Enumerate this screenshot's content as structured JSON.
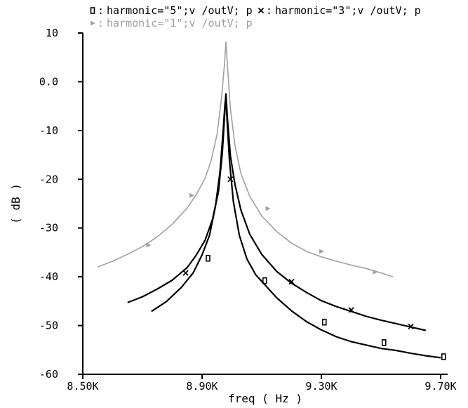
{
  "chart_data": {
    "type": "line",
    "xlabel": "freq ( Hz )",
    "ylabel": "( dB )",
    "xlim": [
      8500,
      9700
    ],
    "ylim": [
      -60,
      10
    ],
    "x_ticks": [
      {
        "value": 8500,
        "label": "8.50K"
      },
      {
        "value": 8900,
        "label": "8.90K"
      },
      {
        "value": 9300,
        "label": "9.30K"
      },
      {
        "value": 9700,
        "label": "9.70K"
      }
    ],
    "y_ticks": [
      {
        "value": 10,
        "label": "10"
      },
      {
        "value": 0,
        "label": "0.0"
      },
      {
        "value": -10,
        "label": "-10"
      },
      {
        "value": -20,
        "label": "-20"
      },
      {
        "value": -30,
        "label": "-30"
      },
      {
        "value": -40,
        "label": "-40"
      },
      {
        "value": -50,
        "label": "-50"
      },
      {
        "value": -60,
        "label": "-60"
      }
    ],
    "legend": [
      {
        "text": "harmonic=\"5\";v /outV; p",
        "color": "#000000",
        "marker": "square"
      },
      {
        "text": "harmonic=\"3\";v /outV; p",
        "color": "#000000",
        "marker": "x"
      },
      {
        "text": "harmonic=\"1\";v /outV; p",
        "color": "#a0a0a0",
        "marker": "triangle"
      }
    ],
    "series": [
      {
        "name": "harmonic=\"1\";v /outV; p",
        "color": "#a0a0a0",
        "marker": "triangle",
        "x": [
          8550,
          8600,
          8650,
          8700,
          8750,
          8800,
          8850,
          8880,
          8910,
          8930,
          8950,
          8965,
          8975,
          8980,
          8985,
          8995,
          9010,
          9030,
          9060,
          9100,
          9150,
          9200,
          9250,
          9300,
          9350,
          9400,
          9450,
          9500,
          9540
        ],
        "y": [
          -38,
          -36.8,
          -35.4,
          -33.8,
          -31.8,
          -29.2,
          -25.9,
          -23.2,
          -19.8,
          -16.2,
          -10.8,
          -3.5,
          3.5,
          8.2,
          3.5,
          -5.5,
          -13,
          -18.8,
          -23.5,
          -27.5,
          -30.7,
          -33.1,
          -34.8,
          -35.9,
          -36.8,
          -37.6,
          -38.3,
          -39.2,
          -40
        ]
      },
      {
        "name": "harmonic=\"3\";v /outV; p",
        "color": "#000000",
        "marker": "x",
        "x": [
          8650,
          8700,
          8750,
          8800,
          8850,
          8880,
          8910,
          8935,
          8955,
          8968,
          8976,
          8980,
          8985,
          8995,
          9010,
          9030,
          9060,
          9100,
          9150,
          9200,
          9250,
          9300,
          9350,
          9400,
          9450,
          9500,
          9550,
          9600,
          9650
        ],
        "y": [
          -45.3,
          -44.1,
          -42.5,
          -40.7,
          -38.1,
          -35.6,
          -32.5,
          -28.2,
          -22.5,
          -14.5,
          -6.5,
          -2.5,
          -7.5,
          -15.2,
          -21,
          -26.3,
          -31.3,
          -35.4,
          -38.9,
          -41.3,
          -43.2,
          -44.9,
          -46.1,
          -47.1,
          -48.1,
          -48.9,
          -49.6,
          -50.3,
          -51
        ]
      },
      {
        "name": "harmonic=\"5\";v /outV; p",
        "color": "#000000",
        "marker": "square",
        "x": [
          8730,
          8780,
          8830,
          8870,
          8900,
          8925,
          8945,
          8960,
          8970,
          8977,
          8980,
          8984,
          8992,
          9005,
          9025,
          9050,
          9080,
          9110,
          9150,
          9200,
          9250,
          9300,
          9350,
          9400,
          9450,
          9500,
          9550,
          9600,
          9650,
          9700
        ],
        "y": [
          -47.1,
          -45.1,
          -42.2,
          -39.2,
          -35.5,
          -31.5,
          -25.5,
          -18.5,
          -10.5,
          -4.5,
          -3,
          -8,
          -16.3,
          -24.6,
          -31.5,
          -36.3,
          -39.6,
          -41.6,
          -44.3,
          -47,
          -49.2,
          -50.9,
          -52.3,
          -53.3,
          -54,
          -54.7,
          -55.1,
          -55.7,
          -56.2,
          -56.6
        ]
      }
    ],
    "markers": [
      {
        "series": 0,
        "x": 8720,
        "y": -33.5
      },
      {
        "series": 0,
        "x": 8865,
        "y": -23.3
      },
      {
        "series": 0,
        "x": 9120,
        "y": -26
      },
      {
        "series": 0,
        "x": 9300,
        "y": -34.8
      },
      {
        "series": 0,
        "x": 9480,
        "y": -39
      },
      {
        "series": 1,
        "x": 8845,
        "y": -39.2
      },
      {
        "series": 1,
        "x": 8995,
        "y": -20
      },
      {
        "series": 1,
        "x": 9200,
        "y": -41
      },
      {
        "series": 1,
        "x": 9400,
        "y": -46.8
      },
      {
        "series": 1,
        "x": 9600,
        "y": -50.2
      },
      {
        "series": 2,
        "x": 8920,
        "y": -36.2
      },
      {
        "series": 2,
        "x": 9110,
        "y": -40.8
      },
      {
        "series": 2,
        "x": 9310,
        "y": -49.3
      },
      {
        "series": 2,
        "x": 9510,
        "y": -53.5
      },
      {
        "series": 2,
        "x": 9710,
        "y": -56.4
      }
    ]
  }
}
